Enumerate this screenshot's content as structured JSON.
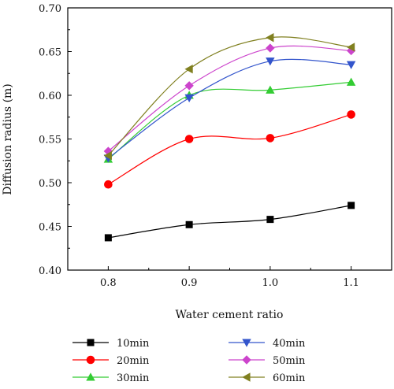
{
  "chart_data": {
    "type": "line",
    "xlabel": "Water cement ratio",
    "ylabel": "Diffusion radius (m)",
    "xlim": [
      0.75,
      1.15
    ],
    "ylim": [
      0.4,
      0.7
    ],
    "x_ticks": [
      "0.8",
      "0.9",
      "1.0",
      "1.1"
    ],
    "y_ticks": [
      "0.40",
      "0.45",
      "0.50",
      "0.55",
      "0.60",
      "0.65",
      "0.70"
    ],
    "x": [
      0.8,
      0.9,
      1.0,
      1.1
    ],
    "legend_position": "bottom",
    "series": [
      {
        "name": "10min",
        "values": [
          0.437,
          0.452,
          0.458,
          0.474
        ],
        "color": "#000000",
        "marker": "square"
      },
      {
        "name": "20min",
        "values": [
          0.498,
          0.55,
          0.551,
          0.578
        ],
        "color": "#ff0000",
        "marker": "circle"
      },
      {
        "name": "30min",
        "values": [
          0.527,
          0.6,
          0.606,
          0.615
        ],
        "color": "#33cc33",
        "marker": "triangle-up"
      },
      {
        "name": "40min",
        "values": [
          0.528,
          0.597,
          0.639,
          0.635
        ],
        "color": "#3355cc",
        "marker": "triangle-down"
      },
      {
        "name": "50min",
        "values": [
          0.536,
          0.611,
          0.654,
          0.651
        ],
        "color": "#cc44cc",
        "marker": "diamond"
      },
      {
        "name": "60min",
        "values": [
          0.531,
          0.63,
          0.666,
          0.655
        ],
        "color": "#808020",
        "marker": "triangle-left"
      }
    ]
  }
}
